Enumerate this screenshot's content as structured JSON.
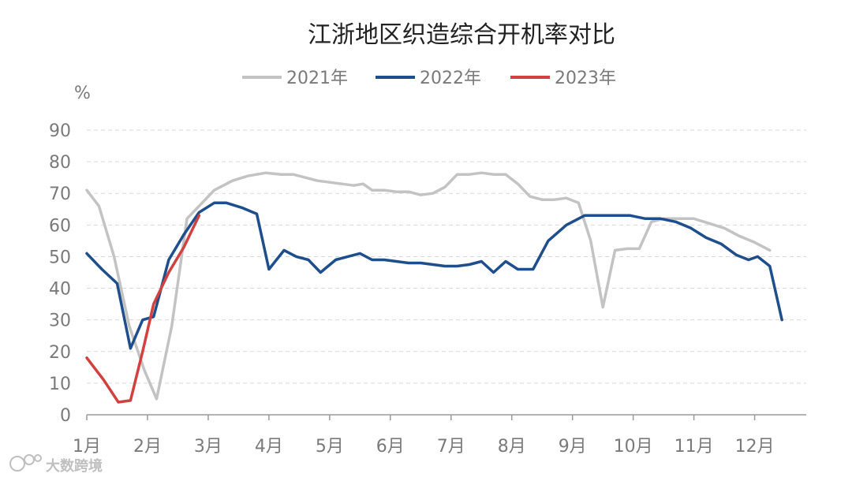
{
  "chart_data": {
    "type": "line",
    "title": "江浙地区织造综合开机率对比",
    "ylabel": "%",
    "ylim": [
      0,
      90
    ],
    "yticks": [
      0,
      10,
      20,
      30,
      40,
      50,
      60,
      70,
      80,
      90
    ],
    "xlim": [
      0,
      11.85
    ],
    "xticks": [
      "1月",
      "2月",
      "3月",
      "4月",
      "5月",
      "6月",
      "7月",
      "8月",
      "9月",
      "10月",
      "11月",
      "12月"
    ],
    "grid": "horizontal dashed",
    "legend_position": "top",
    "series": [
      {
        "name": "2021年",
        "color": "#c3c3c3",
        "points": [
          [
            0,
            71
          ],
          [
            0.2,
            66
          ],
          [
            0.45,
            50
          ],
          [
            0.7,
            28
          ],
          [
            0.95,
            14
          ],
          [
            1.15,
            5
          ],
          [
            1.4,
            28
          ],
          [
            1.65,
            62
          ],
          [
            1.9,
            67
          ],
          [
            2.1,
            71
          ],
          [
            2.4,
            74
          ],
          [
            2.65,
            75.5
          ],
          [
            2.8,
            76
          ],
          [
            2.95,
            76.5
          ],
          [
            3.2,
            76
          ],
          [
            3.4,
            76
          ],
          [
            3.6,
            75
          ],
          [
            3.8,
            74
          ],
          [
            4.0,
            73.5
          ],
          [
            4.2,
            73
          ],
          [
            4.4,
            72.5
          ],
          [
            4.55,
            73
          ],
          [
            4.7,
            71
          ],
          [
            4.9,
            71
          ],
          [
            5.1,
            70.5
          ],
          [
            5.3,
            70.5
          ],
          [
            5.5,
            69.5
          ],
          [
            5.7,
            70
          ],
          [
            5.9,
            72
          ],
          [
            6.1,
            76
          ],
          [
            6.3,
            76
          ],
          [
            6.5,
            76.5
          ],
          [
            6.7,
            76
          ],
          [
            6.9,
            76
          ],
          [
            7.1,
            73
          ],
          [
            7.3,
            69
          ],
          [
            7.5,
            68
          ],
          [
            7.7,
            68
          ],
          [
            7.9,
            68.5
          ],
          [
            8.1,
            67
          ],
          [
            8.3,
            55
          ],
          [
            8.5,
            34
          ],
          [
            8.7,
            52
          ],
          [
            8.9,
            52.5
          ],
          [
            9.1,
            52.5
          ],
          [
            9.3,
            61
          ],
          [
            9.5,
            62
          ],
          [
            9.75,
            62
          ],
          [
            10.0,
            62
          ],
          [
            10.25,
            60.5
          ],
          [
            10.5,
            59
          ],
          [
            10.75,
            56.5
          ],
          [
            11.0,
            54.5
          ],
          [
            11.25,
            52
          ]
        ]
      },
      {
        "name": "2022年",
        "color": "#1f4e8c",
        "points": [
          [
            0,
            51
          ],
          [
            0.25,
            46
          ],
          [
            0.5,
            41.5
          ],
          [
            0.72,
            21
          ],
          [
            0.92,
            30
          ],
          [
            1.1,
            31
          ],
          [
            1.35,
            49
          ],
          [
            1.6,
            57
          ],
          [
            1.85,
            64
          ],
          [
            2.1,
            67
          ],
          [
            2.3,
            67
          ],
          [
            2.55,
            65.5
          ],
          [
            2.8,
            63.5
          ],
          [
            3.0,
            46
          ],
          [
            3.25,
            52
          ],
          [
            3.45,
            50
          ],
          [
            3.65,
            49
          ],
          [
            3.85,
            45
          ],
          [
            4.1,
            49
          ],
          [
            4.3,
            50
          ],
          [
            4.5,
            51
          ],
          [
            4.7,
            49
          ],
          [
            4.9,
            49
          ],
          [
            5.1,
            48.5
          ],
          [
            5.3,
            48
          ],
          [
            5.5,
            48
          ],
          [
            5.7,
            47.5
          ],
          [
            5.9,
            47
          ],
          [
            6.1,
            47
          ],
          [
            6.3,
            47.5
          ],
          [
            6.5,
            48.5
          ],
          [
            6.7,
            45
          ],
          [
            6.9,
            48.5
          ],
          [
            7.1,
            46
          ],
          [
            7.35,
            46
          ],
          [
            7.6,
            55
          ],
          [
            7.9,
            60
          ],
          [
            8.2,
            63
          ],
          [
            8.45,
            63
          ],
          [
            8.7,
            63
          ],
          [
            8.95,
            63
          ],
          [
            9.2,
            62
          ],
          [
            9.45,
            62
          ],
          [
            9.7,
            61
          ],
          [
            9.95,
            59
          ],
          [
            10.2,
            56
          ],
          [
            10.45,
            54
          ],
          [
            10.7,
            50.5
          ],
          [
            10.9,
            49
          ],
          [
            11.05,
            50
          ],
          [
            11.25,
            47
          ],
          [
            11.45,
            30
          ]
        ]
      },
      {
        "name": "2023年",
        "color": "#d0413f",
        "points": [
          [
            0,
            18
          ],
          [
            0.28,
            11
          ],
          [
            0.52,
            4
          ],
          [
            0.72,
            4.5
          ],
          [
            0.92,
            20
          ],
          [
            1.1,
            35
          ],
          [
            1.35,
            45
          ],
          [
            1.6,
            53
          ],
          [
            1.85,
            63
          ]
        ]
      }
    ]
  },
  "watermark": "大数跨境"
}
